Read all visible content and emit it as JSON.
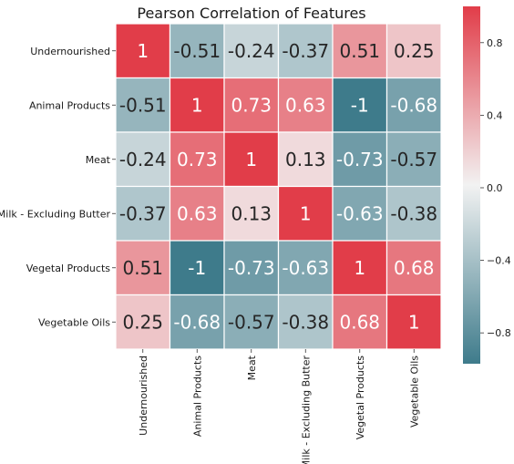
{
  "chart_data": {
    "type": "heatmap",
    "title": "Pearson Correlation of Features",
    "row_labels": [
      "Undernourished",
      "Animal Products",
      "Meat",
      "Milk - Excluding Butter",
      "Vegetal Products",
      "Vegetable Oils"
    ],
    "col_labels": [
      "Undernourished",
      "Animal Products",
      "Meat",
      "Milk - Excluding Butter",
      "Vegetal Products",
      "Vegetable Oils"
    ],
    "values": [
      [
        1,
        -0.51,
        -0.24,
        -0.37,
        0.51,
        0.25
      ],
      [
        -0.51,
        1,
        0.73,
        0.63,
        -1,
        -0.68
      ],
      [
        -0.24,
        0.73,
        1,
        0.13,
        -0.73,
        -0.57
      ],
      [
        -0.37,
        0.63,
        0.13,
        1,
        -0.63,
        -0.38
      ],
      [
        0.51,
        -1,
        -0.73,
        -0.63,
        1,
        0.68
      ],
      [
        0.25,
        -0.68,
        -0.57,
        -0.38,
        0.68,
        1
      ]
    ],
    "cell_labels": [
      [
        "1",
        "-0.51",
        "-0.24",
        "-0.37",
        "0.51",
        "0.25"
      ],
      [
        "-0.51",
        "1",
        "0.73",
        "0.63",
        "-1",
        "-0.68"
      ],
      [
        "-0.24",
        "0.73",
        "1",
        "0.13",
        "-0.73",
        "-0.57"
      ],
      [
        "-0.37",
        "0.63",
        "0.13",
        "1",
        "-0.63",
        "-0.38"
      ],
      [
        "0.51",
        "-1",
        "-0.73",
        "-0.63",
        "1",
        "0.68"
      ],
      [
        "0.25",
        "-0.68",
        "-0.57",
        "-0.38",
        "0.68",
        "1"
      ]
    ],
    "colorbar": {
      "range": [
        -0.97,
        1
      ],
      "ticks": [
        0.8,
        0.4,
        0.0,
        -0.4,
        -0.8
      ],
      "tick_labels": [
        "0.8",
        "0.4",
        "0.0",
        "−0.4",
        "−0.8"
      ]
    },
    "colors": {
      "negative": "#3e7b8b",
      "neutral": "#f2f2f2",
      "positive": "#e13d49"
    },
    "grid": "white",
    "legend": "right colorbar"
  }
}
